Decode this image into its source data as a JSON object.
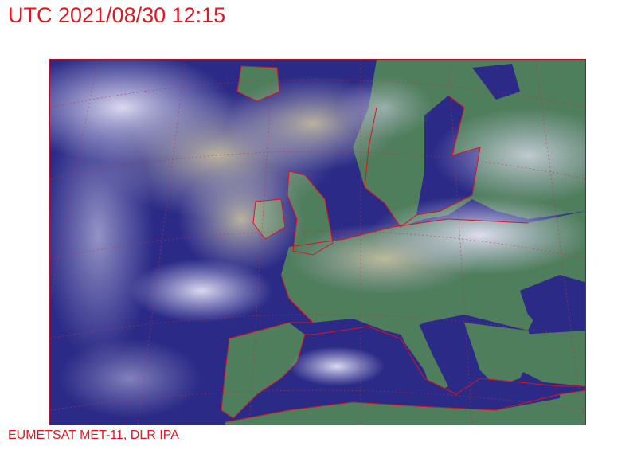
{
  "header": {
    "title": "UTC 2021/08/30 12:15"
  },
  "footer": {
    "credit": "EUMETSAT MET-11, DLR IPA"
  },
  "map": {
    "type": "satellite-composite",
    "region": "Europe and North Atlantic",
    "colors": {
      "ocean": "#2b2a86",
      "land": "#4f7e5c",
      "cloud": "#d8d8f0",
      "coastline": "#e01020",
      "grid": "#c03050"
    }
  }
}
